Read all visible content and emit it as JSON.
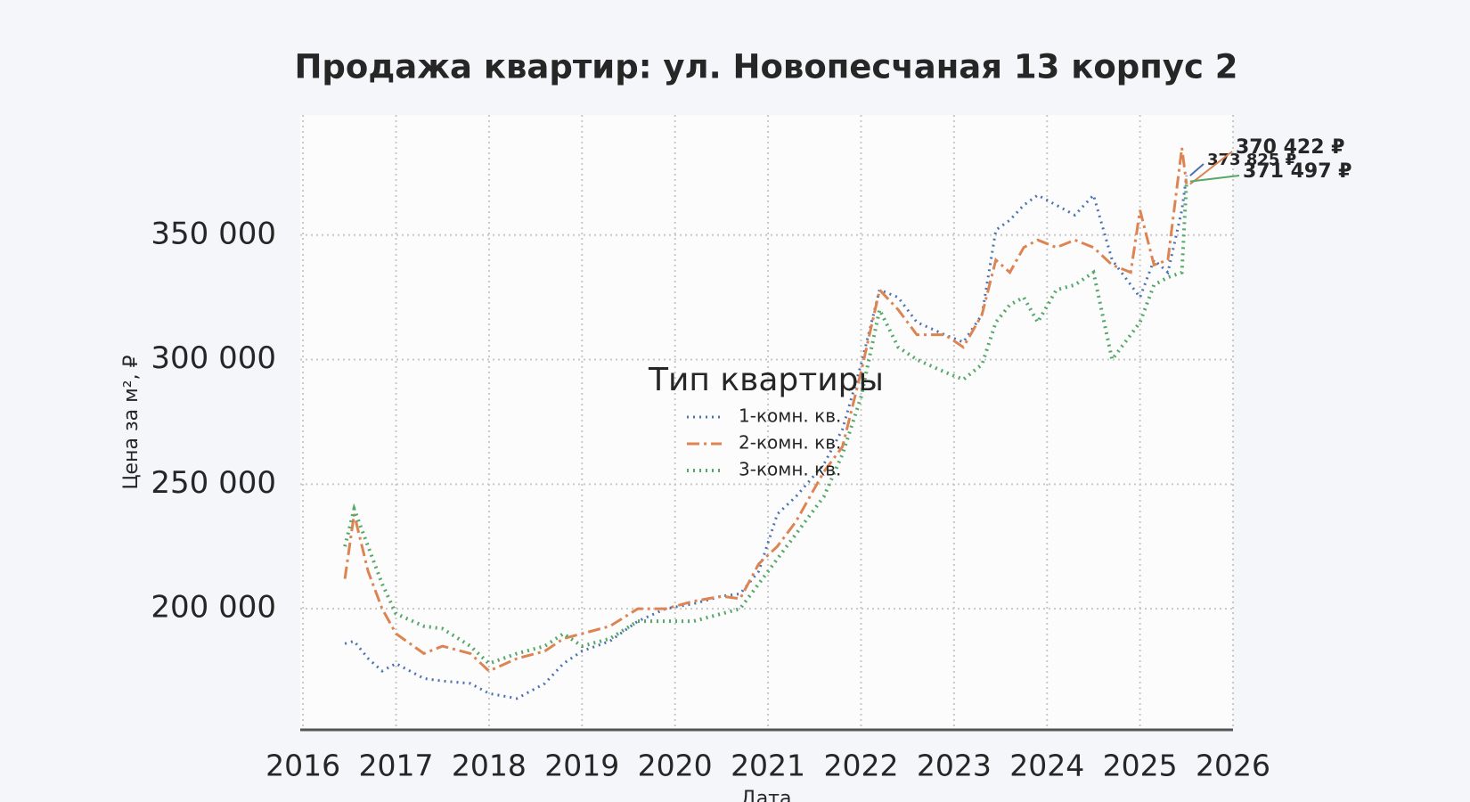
{
  "chart_data": {
    "type": "line",
    "title": "Продажа квартир: ул. Новопесчаная 13 корпус 2",
    "x_label": "Дата",
    "y_label": "Цена за м², ₽",
    "x": [
      2016.45,
      2016.55,
      2016.7,
      2016.85,
      2017.0,
      2017.3,
      2017.5,
      2017.8,
      2018.0,
      2018.3,
      2018.6,
      2018.8,
      2019.0,
      2019.3,
      2019.6,
      2019.9,
      2020.2,
      2020.5,
      2020.7,
      2020.9,
      2021.1,
      2021.3,
      2021.6,
      2021.8,
      2022.0,
      2022.2,
      2022.4,
      2022.6,
      2022.9,
      2023.1,
      2023.3,
      2023.45,
      2023.6,
      2023.75,
      2023.9,
      2024.1,
      2024.3,
      2024.5,
      2024.7,
      2024.9,
      2025.0,
      2025.15,
      2025.3,
      2025.45,
      2025.5
    ],
    "series": [
      {
        "name": "1-комн. кв.",
        "color": "#4c72b0",
        "linestyle": "dotted",
        "values": [
          186000,
          187000,
          180000,
          175000,
          178000,
          172000,
          171000,
          170000,
          166000,
          164000,
          170000,
          178000,
          183000,
          187000,
          195000,
          200000,
          202000,
          205000,
          206000,
          215000,
          238000,
          245000,
          258000,
          272000,
          298000,
          328000,
          325000,
          315000,
          310000,
          307000,
          318000,
          352000,
          356000,
          362000,
          366000,
          362000,
          358000,
          366000,
          340000,
          330000,
          325000,
          340000,
          335000,
          360000,
          373825
        ],
        "value_labels": [
          null,
          null,
          null,
          null,
          null,
          null,
          null,
          null,
          null,
          null,
          null,
          null,
          null,
          null,
          null,
          null,
          null,
          null,
          null,
          null,
          null,
          null,
          null,
          null,
          null,
          null,
          null,
          null,
          null,
          null,
          null,
          null,
          null,
          null,
          null,
          null,
          null,
          null,
          null,
          null,
          null,
          null,
          null,
          null,
          "373 825 ₽"
        ]
      },
      {
        "name": "2-комн. кв.",
        "color": "#dd8452",
        "linestyle": "dashdot",
        "values": [
          212000,
          238000,
          215000,
          200000,
          190000,
          182000,
          185000,
          182000,
          175000,
          180000,
          183000,
          188000,
          190000,
          193000,
          200000,
          200000,
          203000,
          205000,
          204000,
          218000,
          225000,
          235000,
          255000,
          265000,
          295000,
          328000,
          320000,
          310000,
          310000,
          305000,
          318000,
          340000,
          335000,
          345000,
          348000,
          345000,
          348000,
          345000,
          338000,
          335000,
          360000,
          338000,
          340000,
          385000,
          370422
        ],
        "value_labels": [
          null,
          null,
          null,
          null,
          null,
          null,
          null,
          null,
          null,
          null,
          null,
          null,
          null,
          null,
          null,
          null,
          null,
          null,
          null,
          null,
          null,
          null,
          null,
          null,
          null,
          null,
          null,
          null,
          null,
          null,
          null,
          null,
          null,
          null,
          null,
          null,
          null,
          null,
          null,
          null,
          null,
          null,
          null,
          null,
          "370 422 ₽"
        ]
      },
      {
        "name": "3-комн. кв.",
        "color": "#55a868",
        "linestyle": "dotted",
        "values": [
          225000,
          240000,
          225000,
          210000,
          198000,
          193000,
          192000,
          185000,
          178000,
          182000,
          185000,
          190000,
          185000,
          188000,
          195000,
          195000,
          195000,
          198000,
          200000,
          210000,
          220000,
          230000,
          245000,
          262000,
          285000,
          320000,
          305000,
          300000,
          295000,
          292000,
          298000,
          315000,
          322000,
          325000,
          315000,
          328000,
          330000,
          335000,
          300000,
          310000,
          315000,
          330000,
          333000,
          335000,
          371497
        ],
        "value_labels": [
          null,
          null,
          null,
          null,
          null,
          null,
          null,
          null,
          null,
          null,
          null,
          null,
          null,
          null,
          null,
          null,
          null,
          null,
          null,
          null,
          null,
          null,
          null,
          null,
          null,
          null,
          null,
          null,
          null,
          null,
          null,
          null,
          null,
          null,
          null,
          null,
          null,
          null,
          null,
          null,
          null,
          null,
          null,
          null,
          "371 497 ₽"
        ]
      }
    ],
    "xlim": [
      2015.97,
      2026.0
    ],
    "xticks": [
      2016,
      2017,
      2018,
      2019,
      2020,
      2021,
      2022,
      2023,
      2024,
      2025,
      2026
    ],
    "ylim": [
      151400,
      398200
    ],
    "yticks": [
      {
        "value": 200000,
        "label": "200 000"
      },
      {
        "value": 250000,
        "label": "250 000"
      },
      {
        "value": 300000,
        "label": "300 000"
      },
      {
        "value": 350000,
        "label": "350 000"
      }
    ],
    "grid": true,
    "legend_title": "Тип квартиры",
    "legend_loc": "center"
  }
}
